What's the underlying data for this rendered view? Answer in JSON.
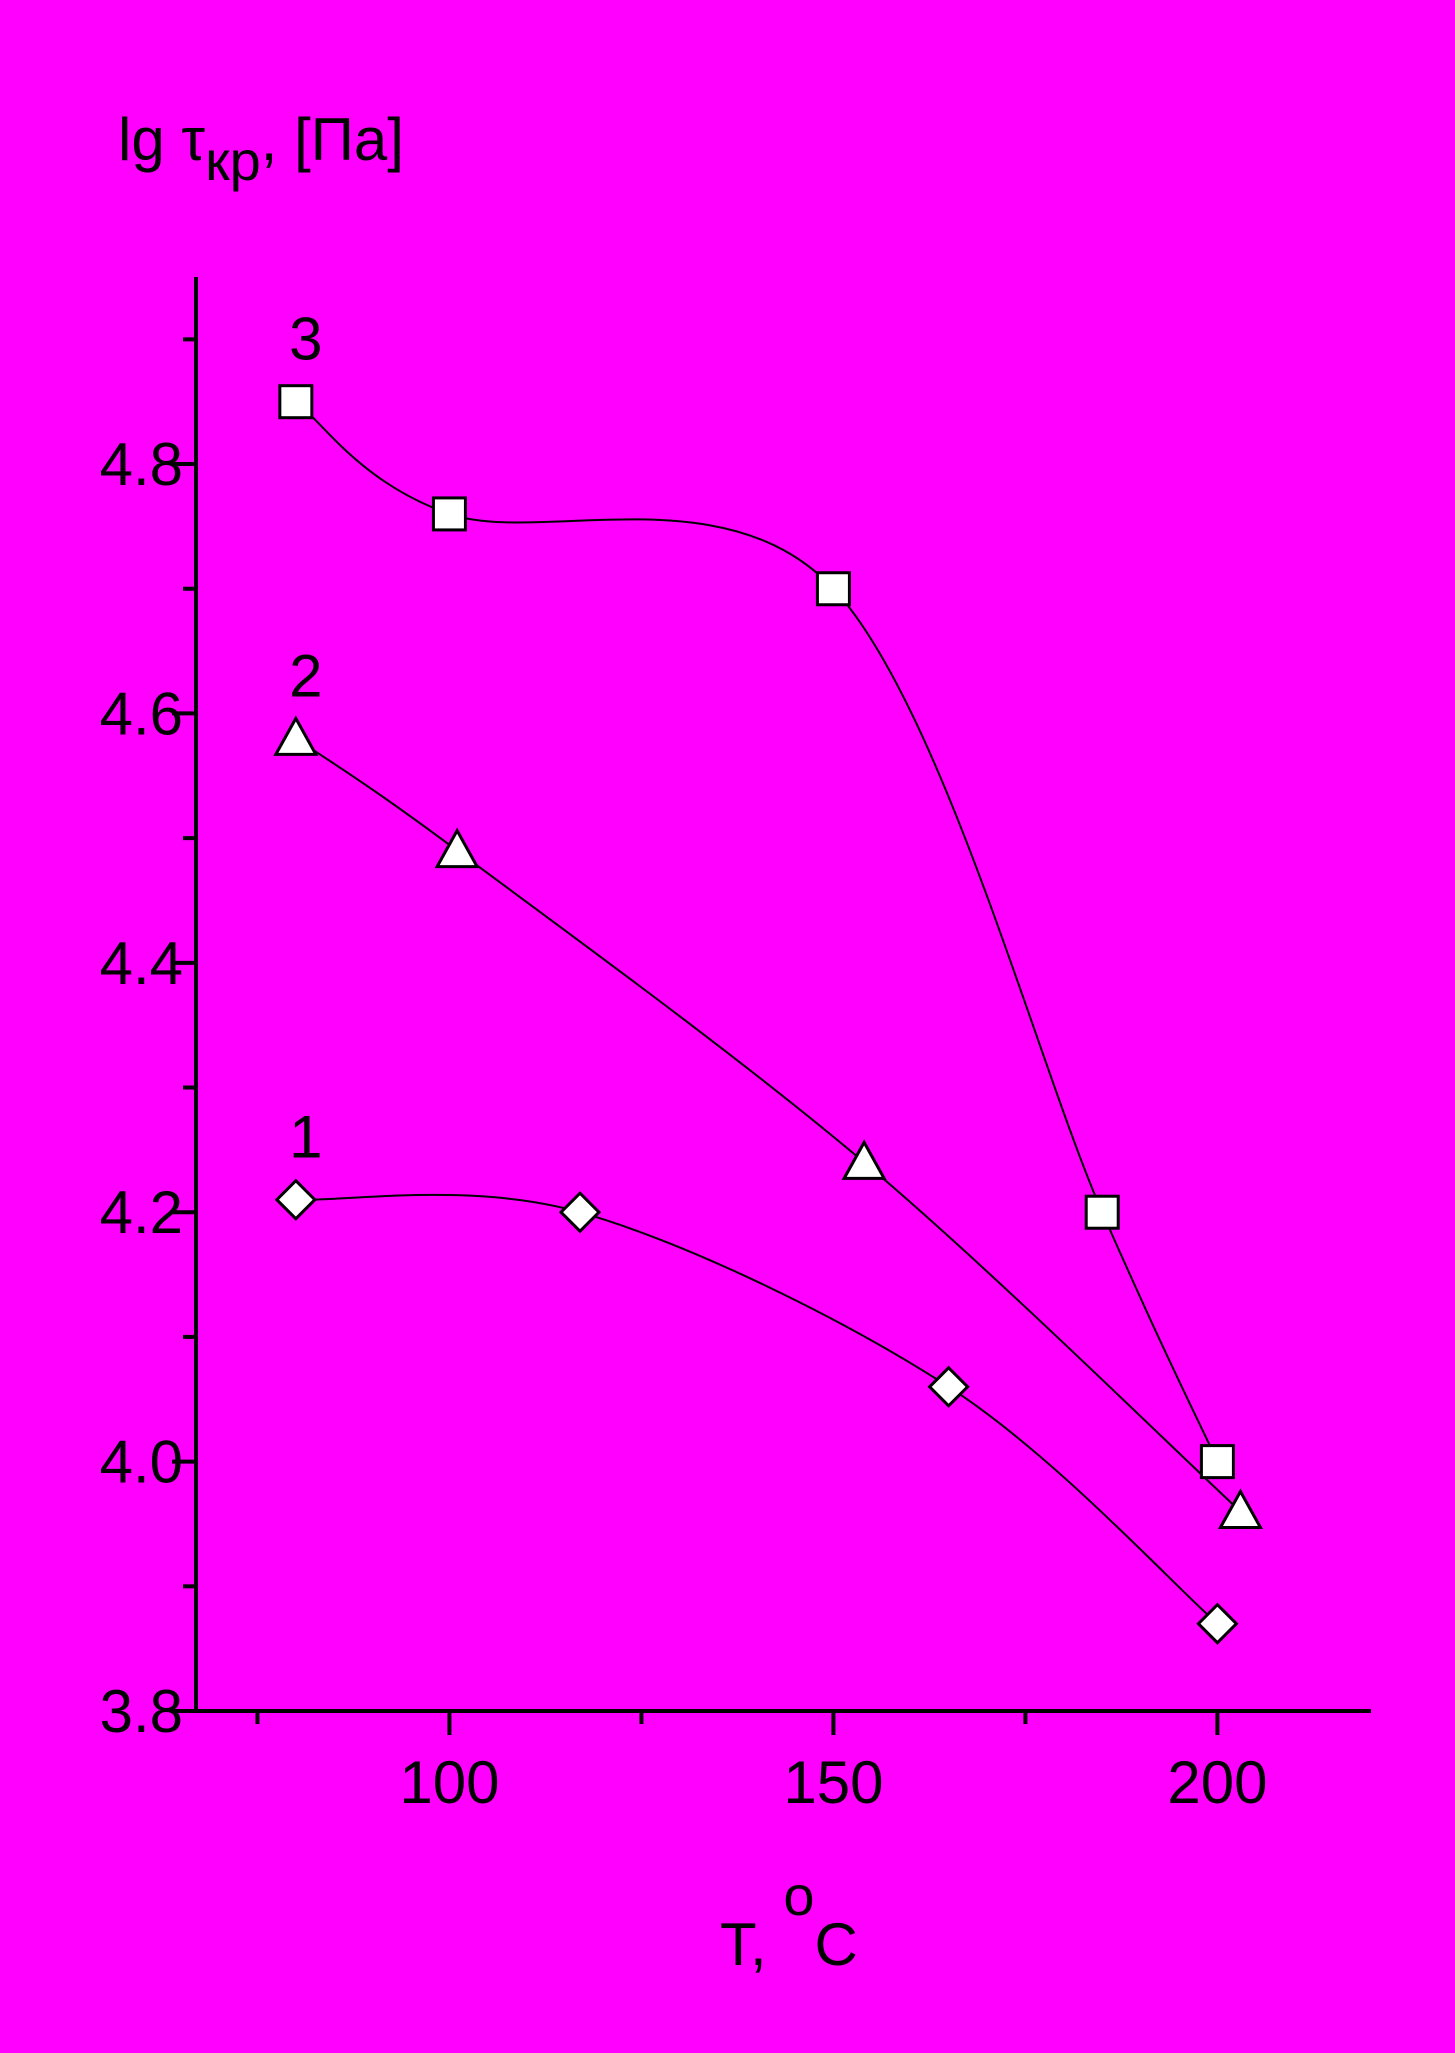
{
  "chart_data": {
    "type": "scatter",
    "x_label": {
      "main": "T, ",
      "sup": "o",
      "tail": "C"
    },
    "y_label": {
      "main": "lg τ",
      "sub": "кр",
      "tail": ", [Па]"
    },
    "background": "#ff00ff",
    "xlim": [
      67,
      220
    ],
    "ylim": [
      3.8,
      4.95
    ],
    "xticks": [
      100,
      150,
      200
    ],
    "yticks": [
      3.8,
      {
        "value": 4,
        "label": "4.0"
      },
      4.2,
      4.4,
      4.6,
      4.8
    ],
    "xminorticks": [
      75,
      125,
      175
    ],
    "yminorticks": [
      3.9,
      4.1,
      4.3,
      4.5,
      4.7,
      4.9
    ],
    "series": [
      {
        "name": "1",
        "marker": "diamond",
        "color": "#ffffff",
        "x": [
          80,
          117,
          165,
          200
        ],
        "values": [
          4.21,
          4.2,
          4.06,
          3.87
        ]
      },
      {
        "name": "2",
        "marker": "triangle",
        "color": "#ffffff",
        "x": [
          80,
          101,
          154,
          203
        ],
        "values": [
          4.58,
          4.49,
          4.24,
          3.96
        ]
      },
      {
        "name": "3",
        "marker": "square",
        "color": "#ffffff",
        "x": [
          80,
          100,
          150,
          185,
          200
        ],
        "values": [
          4.85,
          4.76,
          4.7,
          4.2,
          4.0
        ]
      }
    ]
  }
}
